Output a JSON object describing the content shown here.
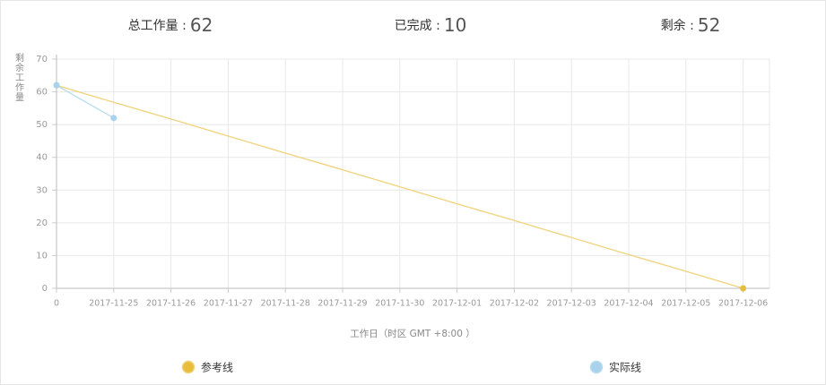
{
  "stats": [
    {
      "label": "总工作量 :",
      "value": "62"
    },
    {
      "label": "已完成 :",
      "value": "10"
    },
    {
      "label": "剩余 :",
      "value": "52"
    }
  ],
  "chart_data": {
    "type": "line",
    "y_label": "剩余工作量",
    "x_label": "工作日（时区 GMT +8:00 ）",
    "categories": [
      "0",
      "2017-11-25",
      "2017-11-26",
      "2017-11-27",
      "2017-11-28",
      "2017-11-29",
      "2017-11-30",
      "2017-12-01",
      "2017-12-02",
      "2017-12-03",
      "2017-12-04",
      "2017-12-05",
      "2017-12-06"
    ],
    "series": [
      {
        "name": "参考线",
        "color": "#f0d27a",
        "marker_color": "#e9bd3c",
        "values": [
          62,
          56.8,
          51.7,
          46.5,
          41.3,
          36.2,
          31,
          25.8,
          20.7,
          15.5,
          10.3,
          5.2,
          0
        ]
      },
      {
        "name": "实际线",
        "color": "#b7dcef",
        "marker_color": "#a9d3ec",
        "values": [
          62,
          52,
          null,
          null,
          null,
          null,
          null,
          null,
          null,
          null,
          null,
          null,
          null
        ]
      }
    ],
    "ylim": [
      0,
      70
    ],
    "yticks": [
      0,
      10,
      20,
      30,
      40,
      50,
      60,
      70
    ],
    "grid": true
  }
}
